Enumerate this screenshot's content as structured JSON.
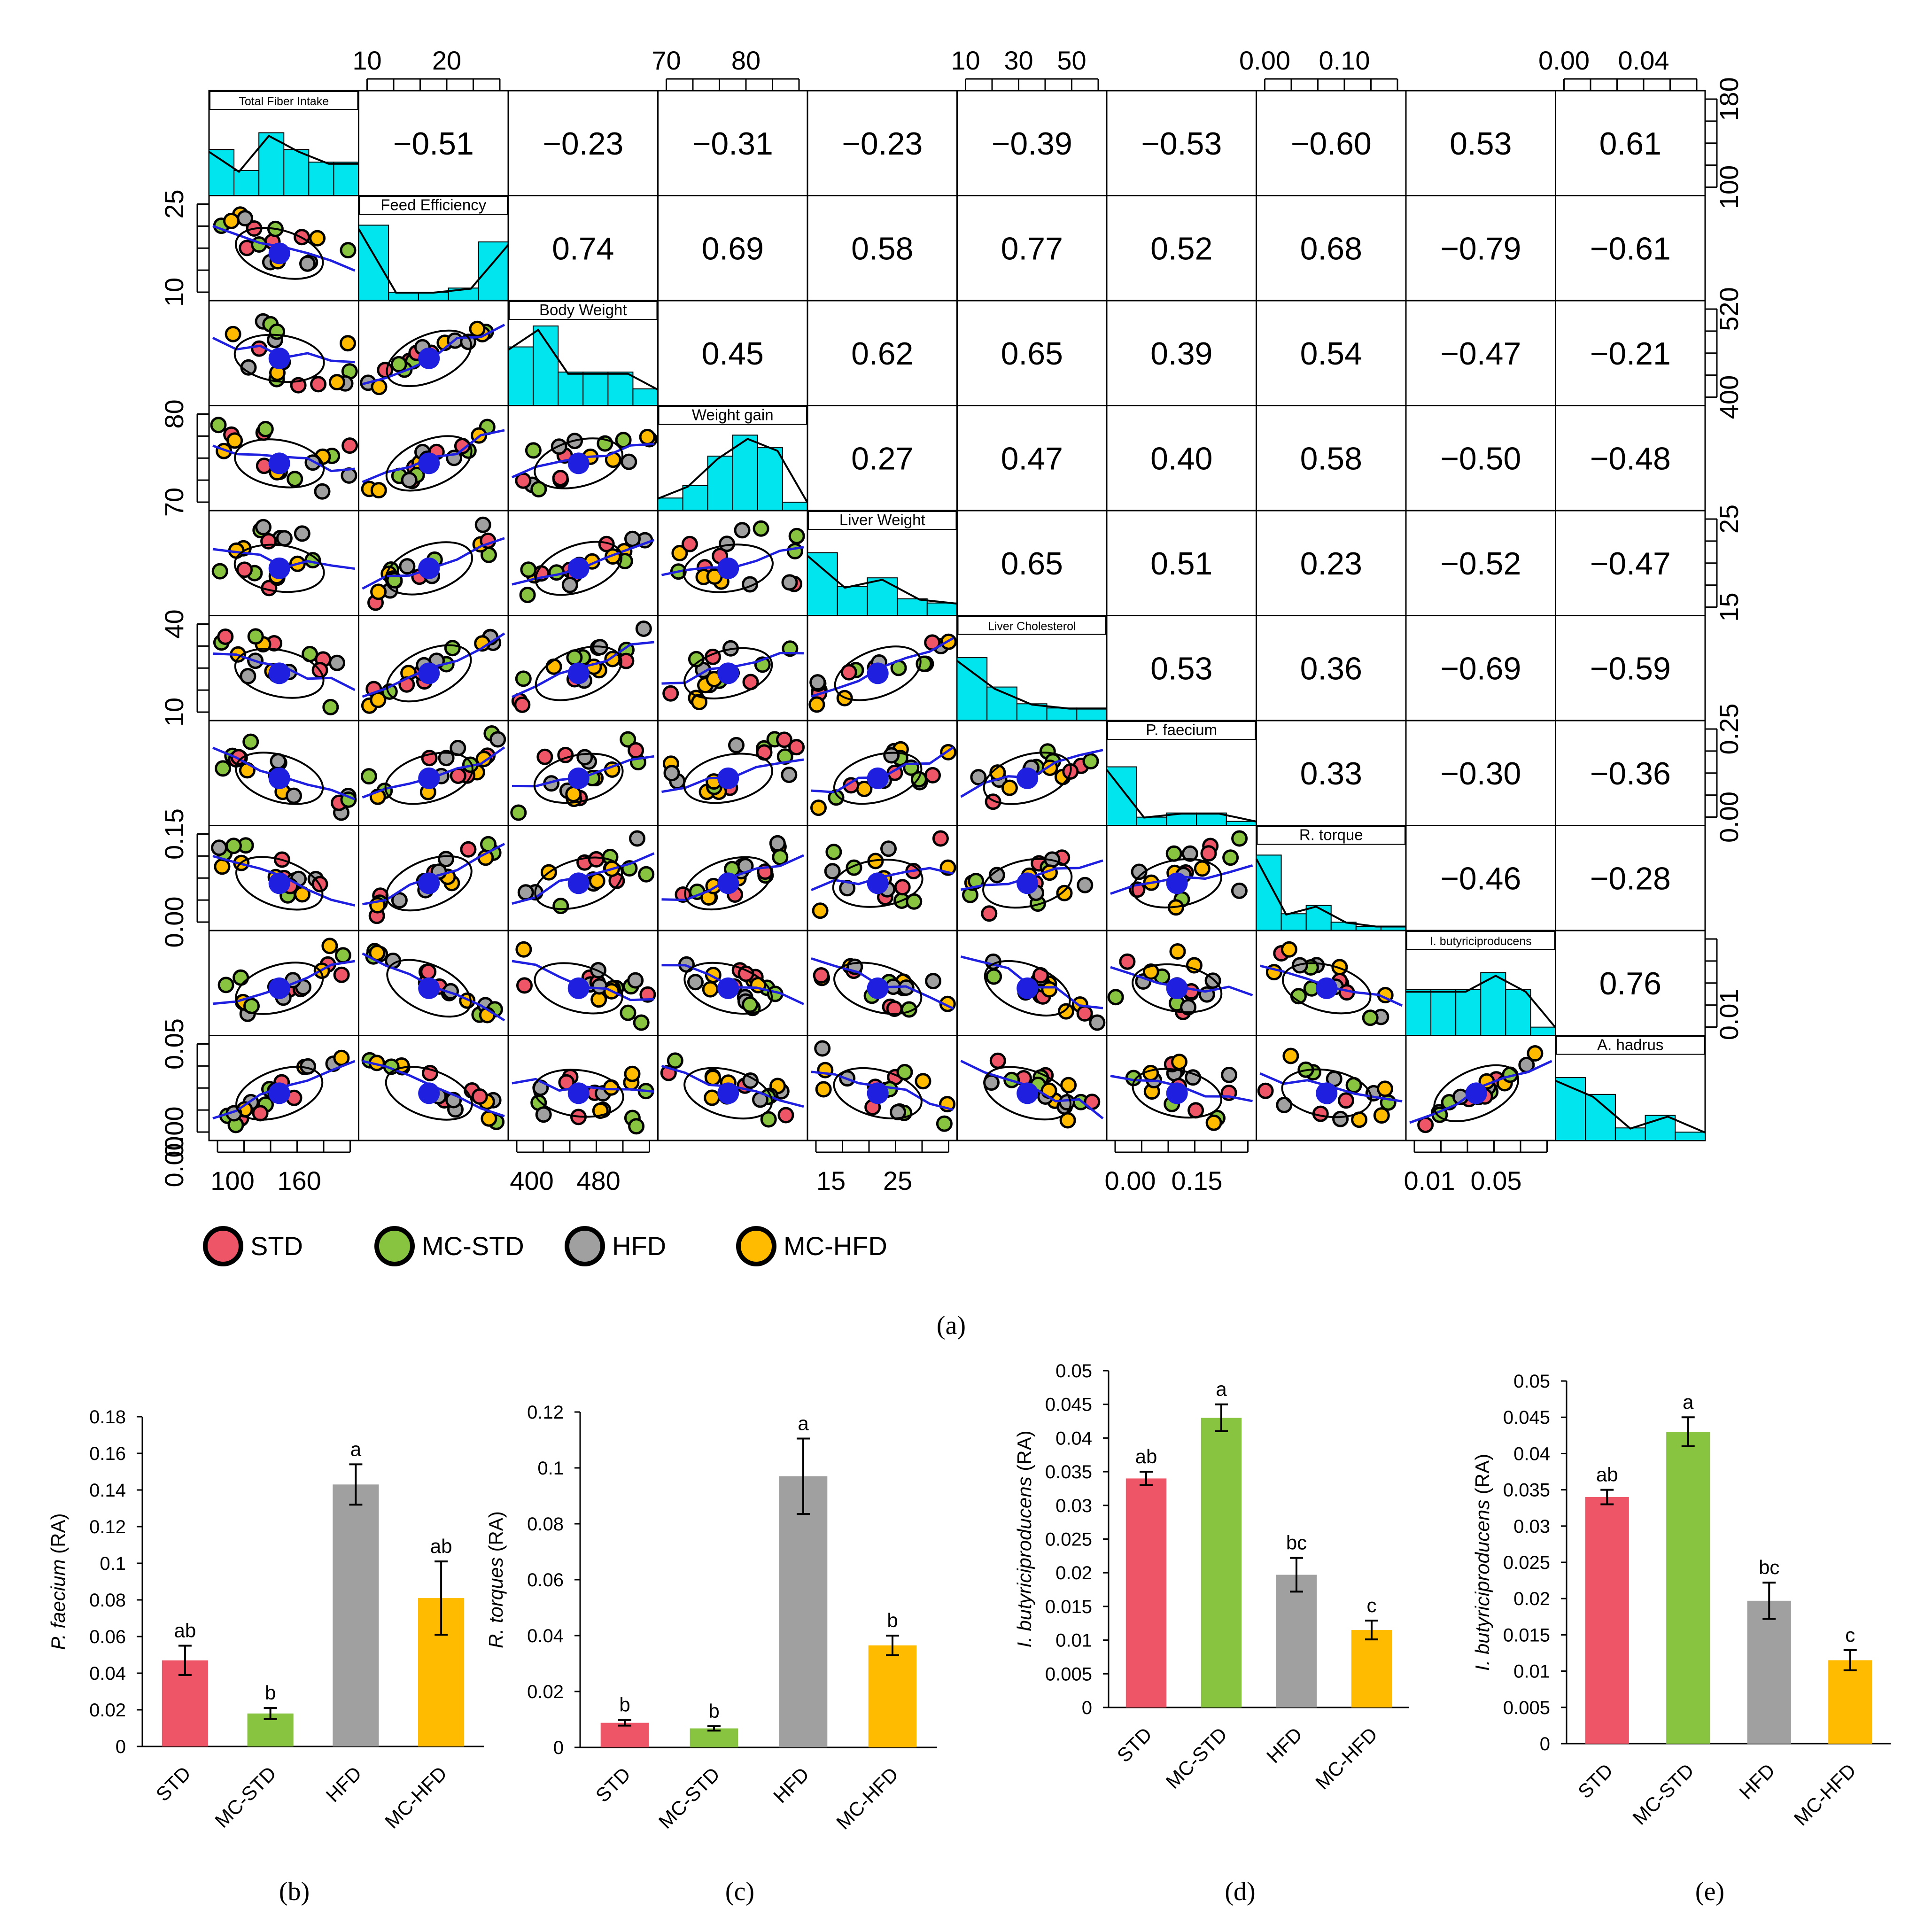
{
  "colors": {
    "hist": "#00E5EE",
    "smooth": "#1F1FE0",
    "center": "#1F1FE0",
    "STD": "#EE5566",
    "MC-STD": "#88C440",
    "HFD": "#A0A0A0",
    "MC-HFD": "#FFBB00"
  },
  "panel_labels": {
    "a": "(a)",
    "b": "(b)",
    "c": "(c)",
    "d": "(d)",
    "e": "(e)"
  },
  "chart_data": [
    {
      "type": "scatter",
      "subtype": "correlation-pairs-matrix",
      "variables": [
        "Total Fiber Intake",
        "Feed Efficiency",
        "Body Weight",
        "Weight gain",
        "Liver Weight",
        "Liver Cholesterol",
        "P. faecium",
        "R. torque",
        "I. butyriciproducens",
        "A. hadrus"
      ],
      "correlations": [
        [
          null,
          -0.51,
          -0.23,
          -0.31,
          -0.23,
          -0.39,
          -0.53,
          -0.6,
          0.53,
          0.61
        ],
        [
          null,
          null,
          0.74,
          0.69,
          0.58,
          0.77,
          0.52,
          0.68,
          -0.79,
          -0.61
        ],
        [
          null,
          null,
          null,
          0.45,
          0.62,
          0.65,
          0.39,
          0.54,
          -0.47,
          -0.21
        ],
        [
          null,
          null,
          null,
          null,
          0.27,
          0.47,
          0.4,
          0.58,
          -0.5,
          -0.48
        ],
        [
          null,
          null,
          null,
          null,
          null,
          0.65,
          0.51,
          0.23,
          -0.52,
          -0.47
        ],
        [
          null,
          null,
          null,
          null,
          null,
          null,
          0.53,
          0.36,
          -0.69,
          -0.59
        ],
        [
          null,
          null,
          null,
          null,
          null,
          null,
          null,
          0.33,
          -0.3,
          -0.36
        ],
        [
          null,
          null,
          null,
          null,
          null,
          null,
          null,
          null,
          -0.46,
          -0.28
        ],
        [
          null,
          null,
          null,
          null,
          null,
          null,
          null,
          null,
          null,
          0.76
        ],
        [
          null,
          null,
          null,
          null,
          null,
          null,
          null,
          null,
          null,
          null
        ]
      ],
      "histograms": [
        [
          0.55,
          0.3,
          0.75,
          0.55,
          0.4,
          0.4
        ],
        [
          0.9,
          0.1,
          0.1,
          0.15,
          0.7
        ],
        [
          0.7,
          0.95,
          0.4,
          0.4,
          0.4,
          0.2
        ],
        [
          0.15,
          0.3,
          0.65,
          0.9,
          0.75,
          0.1
        ],
        [
          0.75,
          0.35,
          0.45,
          0.2,
          0.15
        ],
        [
          0.75,
          0.4,
          0.2,
          0.15,
          0.15
        ],
        [
          0.7,
          0.1,
          0.15,
          0.15,
          0.05
        ],
        [
          0.9,
          0.2,
          0.3,
          0.1,
          0.05,
          0.05
        ],
        [
          0.55,
          0.55,
          0.55,
          0.75,
          0.55,
          0.1
        ],
        [
          0.75,
          0.55,
          0.15,
          0.3,
          0.1
        ]
      ],
      "top_axis": {
        "1": [
          "10",
          "20"
        ],
        "3": [
          "70",
          "80"
        ],
        "5": [
          "10",
          "30",
          "50"
        ],
        "7": [
          "0.00",
          "0.10"
        ],
        "9": [
          "0.00",
          "0.04"
        ]
      },
      "bottom_axis": {
        "0": [
          "100",
          "160"
        ],
        "2": [
          "400",
          "480"
        ],
        "4": [
          "15",
          "25"
        ],
        "6": [
          "0.00",
          "0.15"
        ],
        "8": [
          "0.01",
          "0.05"
        ]
      },
      "left_axis": {
        "1": [
          "25",
          "10"
        ],
        "3": [
          "80",
          "70"
        ],
        "5": [
          "40",
          "10"
        ],
        "7": [
          "0.15",
          "0.00"
        ],
        "9": [
          "0.05",
          "0.00"
        ]
      },
      "left_axis_extra": {
        "9": "0.00"
      },
      "right_axis": {
        "0": [
          "180",
          "100"
        ],
        "2": [
          "520",
          "400"
        ],
        "4": [
          "25",
          "15"
        ],
        "6": [
          "0.25",
          "0.00"
        ],
        "8": [
          "0.01"
        ]
      },
      "legend": [
        "STD",
        "MC-STD",
        "HFD",
        "MC-HFD"
      ]
    },
    {
      "type": "bar",
      "panel": "b",
      "categories": [
        "STD",
        "MC-STD",
        "HFD",
        "MC-HFD"
      ],
      "values": [
        0.047,
        0.018,
        0.143,
        0.081
      ],
      "errors": [
        0.008,
        0.003,
        0.011,
        0.02
      ],
      "letters": [
        "ab",
        "b",
        "a",
        "ab"
      ],
      "ylabel_italic": "P. faecium",
      "ylabel_rest": " (RA)",
      "ylim": [
        0,
        0.18
      ],
      "ticks": [
        "0",
        "0.02",
        "0.04",
        "0.06",
        "0.08",
        "0.1",
        "0.12",
        "0.14",
        "0.16",
        "0.18"
      ]
    },
    {
      "type": "bar",
      "panel": "c",
      "categories": [
        "STD",
        "MC-STD",
        "HFD",
        "MC-HFD"
      ],
      "values": [
        0.0088,
        0.0068,
        0.097,
        0.0365
      ],
      "errors": [
        0.001,
        0.0008,
        0.0135,
        0.0035
      ],
      "letters": [
        "b",
        "b",
        "a",
        "b"
      ],
      "ylabel_italic": "R. torques",
      "ylabel_rest": " (RA)",
      "ylim": [
        0,
        0.12
      ],
      "ticks": [
        "0",
        "0.02",
        "0.04",
        "0.06",
        "0.08",
        "0.1",
        "0.12"
      ]
    },
    {
      "type": "bar",
      "panel": "d",
      "categories": [
        "STD",
        "MC-STD",
        "HFD",
        "MC-HFD"
      ],
      "values": [
        0.034,
        0.043,
        0.0197,
        0.0115
      ],
      "errors": [
        0.001,
        0.002,
        0.0025,
        0.0014
      ],
      "letters": [
        "ab",
        "a",
        "bc",
        "c"
      ],
      "ylabel_italic": "I. butyriciproducens",
      "ylabel_rest": " (RA)",
      "ylim": [
        0,
        0.05
      ],
      "ticks": [
        "0",
        "0.005",
        "0.01",
        "0.015",
        "0.02",
        "0.025",
        "0.03",
        "0.035",
        "0.04",
        "0.045",
        "0.05"
      ]
    },
    {
      "type": "bar",
      "panel": "e",
      "categories": [
        "STD",
        "MC-STD",
        "HFD",
        "MC-HFD"
      ],
      "values": [
        0.034,
        0.043,
        0.0197,
        0.0115
      ],
      "errors": [
        0.001,
        0.002,
        0.0025,
        0.0014
      ],
      "letters": [
        "ab",
        "a",
        "bc",
        "c"
      ],
      "ylabel_italic": "I. butyriciproducens",
      "ylabel_rest": " (RA)",
      "ylim": [
        0,
        0.05
      ],
      "ticks": [
        "0",
        "0.005",
        "0.01",
        "0.015",
        "0.02",
        "0.025",
        "0.03",
        "0.035",
        "0.04",
        "0.045",
        "0.05"
      ]
    }
  ]
}
